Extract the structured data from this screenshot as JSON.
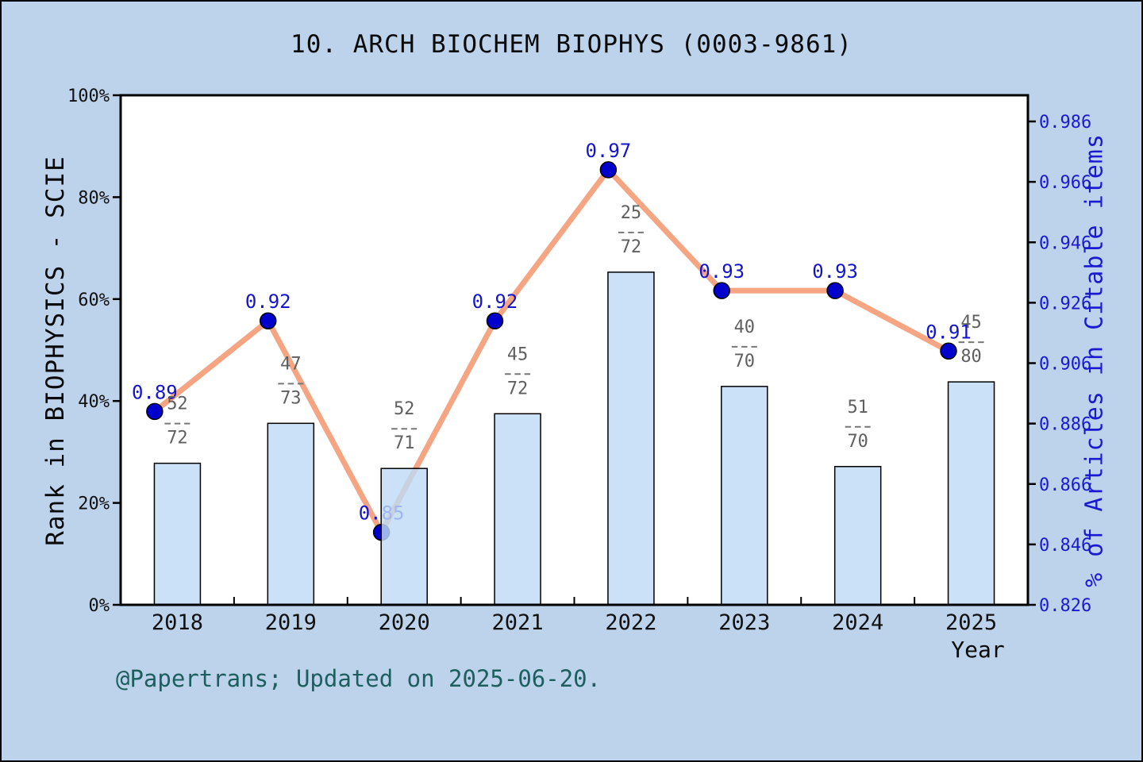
{
  "title": "10. ARCH BIOCHEM BIOPHYS (0003-9861)",
  "footer": "@Papertrans; Updated on 2025-06-20.",
  "chart_data": {
    "type": "bar+line",
    "title": "10. ARCH BIOCHEM BIOPHYS (0003-9861)",
    "xlabel": "Year",
    "categories": [
      "2018",
      "2019",
      "2020",
      "2021",
      "2022",
      "2023",
      "2024",
      "2025"
    ],
    "grid": false,
    "legend": "none",
    "series": [
      {
        "name": "Rank in BIOPHYSICS - SCIE",
        "type": "bar",
        "axis": "left",
        "fractions": [
          {
            "num": "52",
            "den": "72"
          },
          {
            "num": "47",
            "den": "73"
          },
          {
            "num": "52",
            "den": "71"
          },
          {
            "num": "45",
            "den": "72"
          },
          {
            "num": "25",
            "den": "72"
          },
          {
            "num": "40",
            "den": "70"
          },
          {
            "num": "51",
            "den": "70"
          },
          {
            "num": "45",
            "den": "80"
          }
        ],
        "values_percent": [
          27.78,
          35.62,
          26.76,
          37.5,
          65.28,
          42.86,
          27.14,
          43.75
        ]
      },
      {
        "name": "% of Articles in Citable items",
        "type": "line",
        "axis": "right",
        "values": [
          0.89,
          0.92,
          0.85,
          0.92,
          0.97,
          0.93,
          0.93,
          0.91
        ],
        "point_labels": [
          "0.89",
          "0.92",
          "0.85",
          "0.92",
          "0.97",
          "0.93",
          "0.93",
          "0.91"
        ],
        "x_offset_years": -0.2
      }
    ],
    "left_axis": {
      "label": "Rank in BIOPHYSICS - SCIE",
      "tick_labels": [
        "0%",
        "20%",
        "40%",
        "60%",
        "80%",
        "100%"
      ],
      "range": [
        0,
        100
      ]
    },
    "right_axis": {
      "label": "% of Articles in Citable items",
      "tick_labels": [
        "0.826",
        "0.846",
        "0.866",
        "0.886",
        "0.906",
        "0.926",
        "0.946",
        "0.966",
        "0.986"
      ],
      "tick_step": 0.02,
      "range_bottom": 0.826
    }
  },
  "colors": {
    "background": "#bdd2eb",
    "plot_background": "#ffffff",
    "frame": "#000000",
    "bar_fill": "#bedbf5",
    "bar_edge": "#000000",
    "line": "#f6a583",
    "point_fill": "#0000cc",
    "point_edge": "#000000",
    "value_label_text": "#1414cc",
    "right_axis_text": "#1a1ad1",
    "fraction_text": "#5f5f5f",
    "dash_color": "#777777",
    "tick_text": "#111111",
    "footer_text": "#1d5f5f"
  }
}
